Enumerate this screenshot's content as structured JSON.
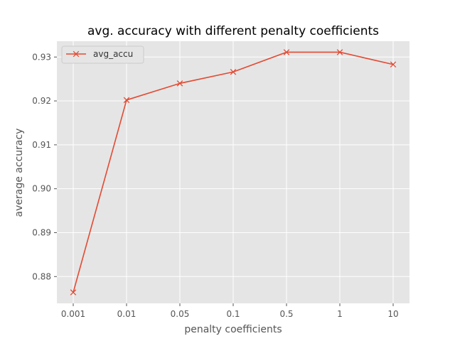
{
  "chart_data": {
    "type": "line",
    "title": "avg. accuracy with different penalty coefficients",
    "xlabel": "penalty coefficients",
    "ylabel": "average accuracy",
    "categories": [
      "0.001",
      "0.01",
      "0.05",
      "0.1",
      "0.5",
      "1",
      "10"
    ],
    "series": [
      {
        "name": "avg_accu",
        "values": [
          0.8764,
          0.9202,
          0.924,
          0.9266,
          0.9311,
          0.9311,
          0.9283
        ],
        "color": "#e24a33",
        "marker": "x"
      }
    ],
    "yticks": [
      "0.88",
      "0.89",
      "0.90",
      "0.91",
      "0.92",
      "0.93"
    ],
    "ylim": [
      0.8739,
      0.9336
    ],
    "grid": true,
    "legend_position": "top-left",
    "plot_background": "#e5e5e5",
    "grid_color": "#ffffff"
  }
}
